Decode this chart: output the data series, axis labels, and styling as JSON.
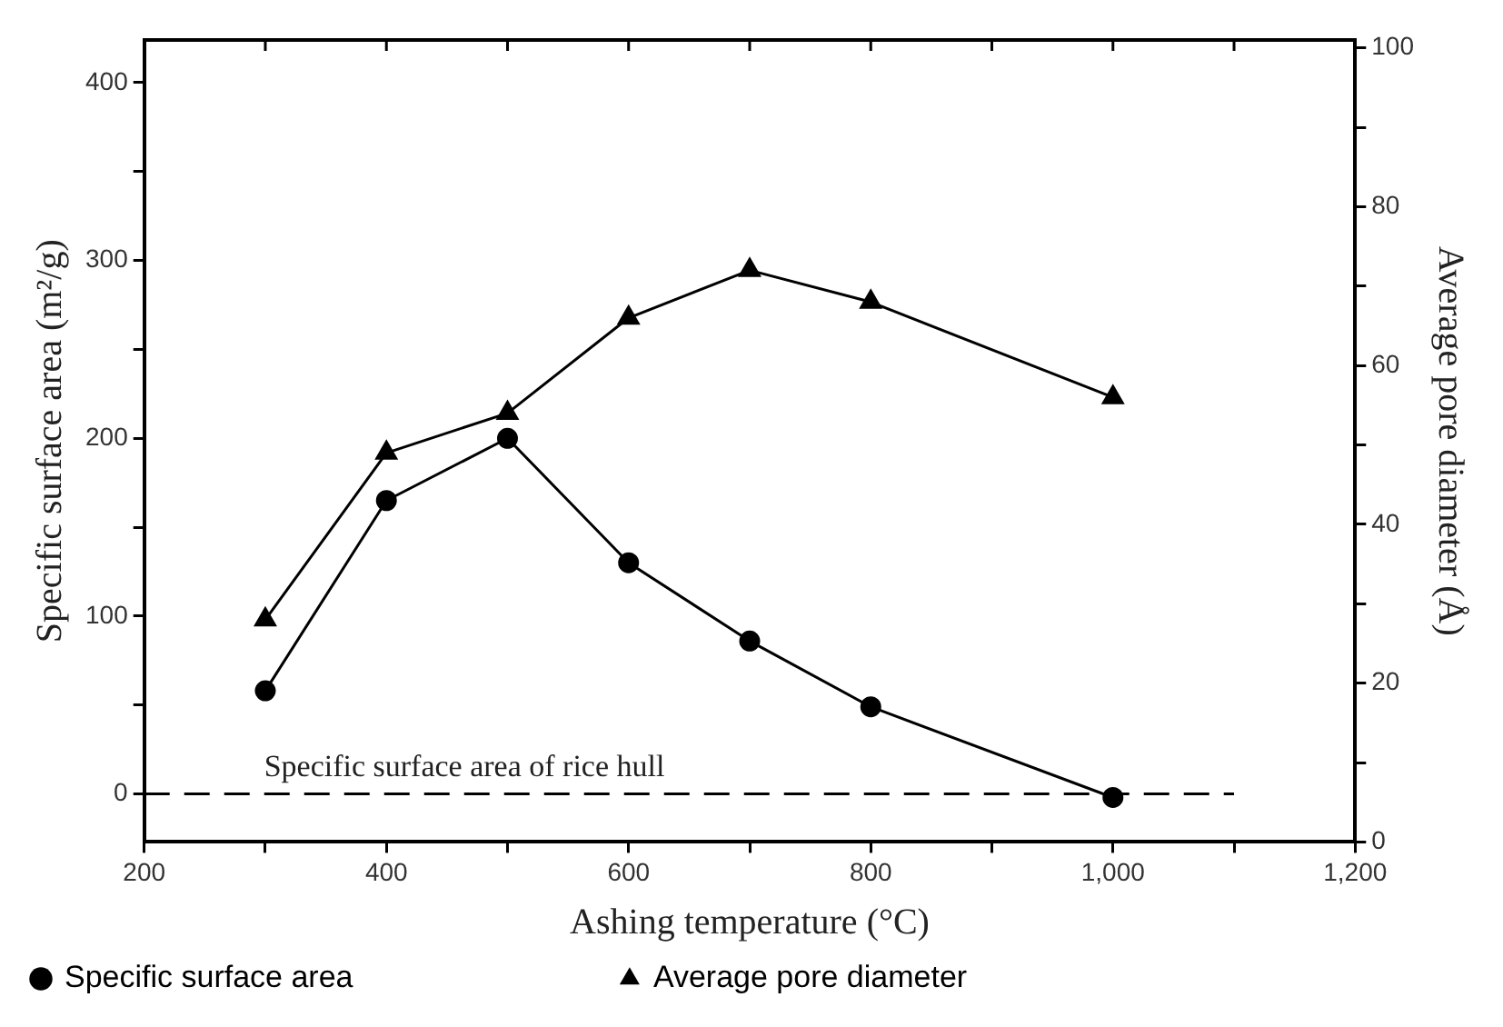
{
  "chart_data": {
    "type": "line",
    "xlabel": "Ashing temperature (°C)",
    "ylabel": "Specific surface area (m²/g)",
    "y2label": "Average pore diameter (Å)",
    "x": [
      300,
      400,
      500,
      600,
      700,
      800,
      1000
    ],
    "series": [
      {
        "name": "Specific surface area",
        "color": "#000000",
        "values": [
          58,
          165,
          200,
          130,
          86,
          49,
          -2
        ],
        "marker": "circle"
      },
      {
        "name": "Average pore diameter",
        "color": "#000000",
        "values": [
          28,
          49,
          54,
          66,
          72,
          68,
          56
        ],
        "axis": "y2",
        "marker": "triangle"
      },
      {
        "name": "Specific surface area of rice hull",
        "color": "#000000",
        "x": [
          200,
          1100
        ],
        "values": [
          0,
          0
        ],
        "marker": "none",
        "line_style": "dashed"
      }
    ],
    "xlim": [
      200,
      1200
    ],
    "xticks": [
      200,
      {
        "value": 300,
        "label": null
      },
      400,
      {
        "value": 500,
        "label": null
      },
      600,
      {
        "value": 700,
        "label": null
      },
      800,
      {
        "value": 900,
        "label": null
      },
      {
        "value": 1000,
        "label": "1,000"
      },
      {
        "value": 1100,
        "label": null
      },
      {
        "value": 1200,
        "label": "1,200"
      }
    ],
    "ylim": [
      -27,
      424
    ],
    "yticks": [
      0,
      {
        "value": 50,
        "label": null
      },
      100,
      {
        "value": 150,
        "label": null
      },
      200,
      {
        "value": 250,
        "label": null
      },
      300,
      {
        "value": 350,
        "label": null
      },
      400
    ],
    "y2lim": [
      0,
      101
    ],
    "y2ticks": [
      0,
      {
        "value": 10,
        "label": null
      },
      20,
      {
        "value": 30,
        "label": null
      },
      40,
      {
        "value": 50,
        "label": null
      },
      60,
      {
        "value": 70,
        "label": null
      },
      80,
      {
        "value": 90,
        "label": null
      },
      100
    ],
    "legend": "bottom"
  }
}
